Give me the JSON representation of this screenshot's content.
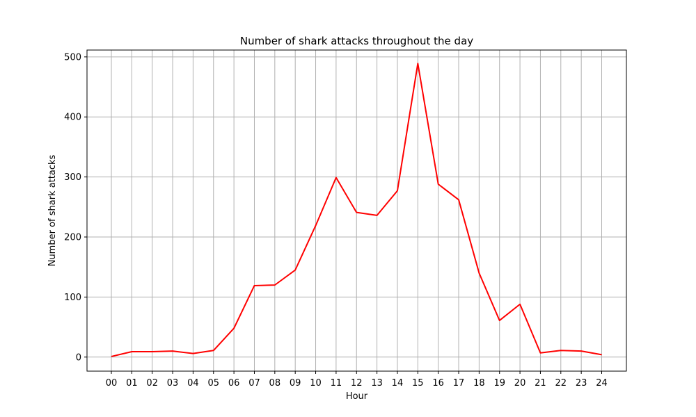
{
  "chart_data": {
    "type": "line",
    "title": "Number of shark attacks throughout the day",
    "xlabel": "Hour",
    "ylabel": "Number of shark attacks",
    "categories": [
      "00",
      "01",
      "02",
      "03",
      "04",
      "05",
      "06",
      "07",
      "08",
      "09",
      "10",
      "11",
      "12",
      "13",
      "14",
      "15",
      "16",
      "17",
      "18",
      "19",
      "20",
      "21",
      "22",
      "23",
      "24"
    ],
    "series": [
      {
        "values": [
          1,
          9,
          9,
          10,
          6,
          11,
          48,
          119,
          120,
          145,
          219,
          299,
          241,
          236,
          277,
          489,
          288,
          262,
          140,
          61,
          88,
          7,
          11,
          10,
          4
        ]
      }
    ],
    "yticks": [
      0,
      100,
      200,
      300,
      400,
      500
    ],
    "ylim": [
      -23.4,
      511.4
    ],
    "grid": true,
    "line_color": "#ff0000",
    "grid_color": "#b0b0b0"
  }
}
